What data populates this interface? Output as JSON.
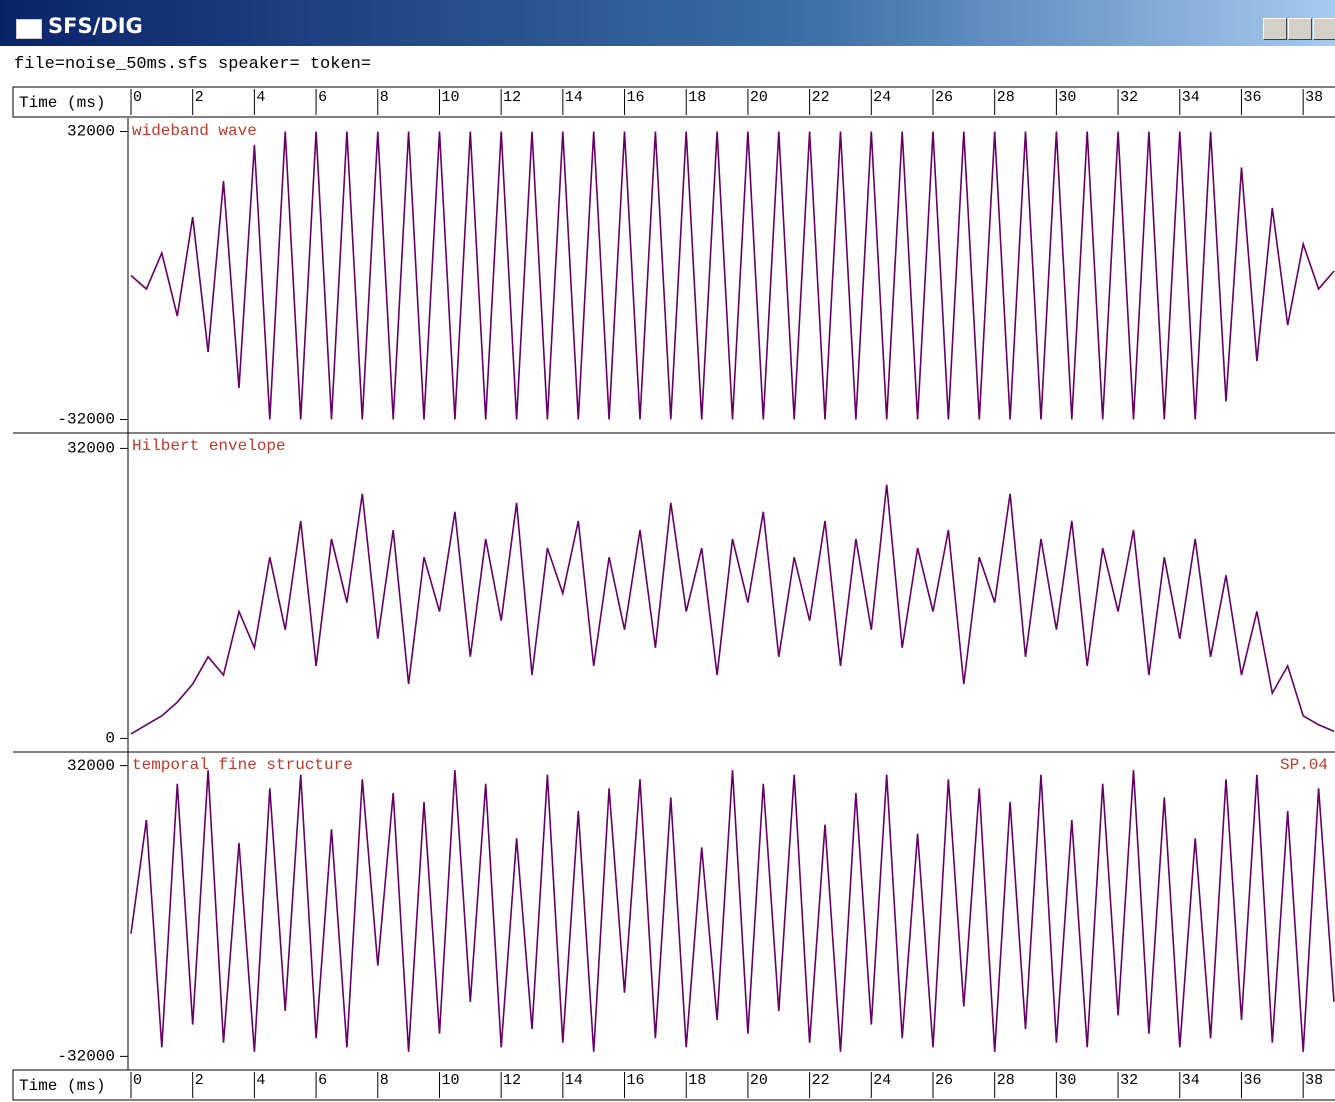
{
  "window_title": "SFS/DIG",
  "file_info": "file=noise_50ms.sfs speaker= token=",
  "time_axis": {
    "label": "Time (ms)",
    "xlim": [
      0,
      39
    ],
    "xticks": [
      0,
      2,
      4,
      6,
      8,
      10,
      12,
      14,
      16,
      18,
      20,
      22,
      24,
      26,
      28,
      30,
      32,
      34,
      36,
      38
    ]
  },
  "chart_data": [
    {
      "type": "line",
      "title": "wideband wave",
      "color": "#660066",
      "ylim": [
        -35000,
        35000
      ],
      "yticks": [
        -32000,
        32000
      ],
      "x": [
        0,
        0.5,
        1,
        1.5,
        2,
        2.5,
        3,
        3.5,
        4,
        4.5,
        5,
        5.5,
        6,
        6.5,
        7,
        7.5,
        8,
        8.5,
        9,
        9.5,
        10,
        10.5,
        11,
        11.5,
        12,
        12.5,
        13,
        13.5,
        14,
        14.5,
        15,
        15.5,
        16,
        16.5,
        17,
        17.5,
        18,
        18.5,
        19,
        19.5,
        20,
        20.5,
        21,
        21.5,
        22,
        22.5,
        23,
        23.5,
        24,
        24.5,
        25,
        25.5,
        26,
        26.5,
        27,
        27.5,
        28,
        28.5,
        29,
        29.5,
        30,
        30.5,
        31,
        31.5,
        32,
        32.5,
        33,
        33.5,
        34,
        34.5,
        35,
        35.5,
        36,
        36.5,
        37,
        37.5,
        38,
        38.5,
        39
      ],
      "values": [
        0,
        -3000,
        5000,
        -9000,
        13000,
        -17000,
        21000,
        -25000,
        29000,
        -32000,
        32000,
        -32000,
        32000,
        -32000,
        32000,
        -32000,
        32000,
        -32000,
        32000,
        -32000,
        32000,
        -32000,
        32000,
        -32000,
        32000,
        -32000,
        32000,
        -32000,
        32000,
        -32000,
        32000,
        -32000,
        32000,
        -32000,
        32000,
        -32000,
        32000,
        -32000,
        32000,
        -32000,
        32000,
        -32000,
        32000,
        -32000,
        32000,
        -32000,
        32000,
        -32000,
        32000,
        -32000,
        32000,
        -32000,
        32000,
        -32000,
        32000,
        -32000,
        32000,
        -32000,
        32000,
        -32000,
        32000,
        -32000,
        32000,
        -32000,
        32000,
        -32000,
        32000,
        -32000,
        32000,
        -32000,
        32000,
        -28000,
        24000,
        -19000,
        15000,
        -11000,
        7000,
        -3000,
        1000
      ]
    },
    {
      "type": "line",
      "title": "Hilbert envelope",
      "color": "#660066",
      "ylim": [
        -1500,
        33700
      ],
      "yticks": [
        0,
        32000
      ],
      "x": [
        0,
        0.5,
        1,
        1.5,
        2,
        2.5,
        3,
        3.5,
        4,
        4.5,
        5,
        5.5,
        6,
        6.5,
        7,
        7.5,
        8,
        8.5,
        9,
        9.5,
        10,
        10.5,
        11,
        11.5,
        12,
        12.5,
        13,
        13.5,
        14,
        14.5,
        15,
        15.5,
        16,
        16.5,
        17,
        17.5,
        18,
        18.5,
        19,
        19.5,
        20,
        20.5,
        21,
        21.5,
        22,
        22.5,
        23,
        23.5,
        24,
        24.5,
        25,
        25.5,
        26,
        26.5,
        27,
        27.5,
        28,
        28.5,
        29,
        29.5,
        30,
        30.5,
        31,
        31.5,
        32,
        32.5,
        33,
        33.5,
        34,
        34.5,
        35,
        35.5,
        36,
        36.5,
        37,
        37.5,
        38,
        38.5,
        39
      ],
      "values": [
        500,
        1500,
        2500,
        4000,
        6000,
        9000,
        7000,
        14000,
        10000,
        20000,
        12000,
        24000,
        8000,
        22000,
        15000,
        27000,
        11000,
        23000,
        6000,
        20000,
        14000,
        25000,
        9000,
        22000,
        13000,
        26000,
        7000,
        21000,
        16000,
        24000,
        8000,
        20000,
        12000,
        23000,
        10000,
        26000,
        14000,
        21000,
        7000,
        22000,
        15000,
        25000,
        9000,
        20000,
        13000,
        24000,
        8000,
        22000,
        12000,
        28000,
        10000,
        21000,
        14000,
        23000,
        6000,
        20000,
        15000,
        27000,
        9000,
        22000,
        12000,
        24000,
        8000,
        21000,
        14000,
        23000,
        7000,
        20000,
        11000,
        22000,
        9000,
        18000,
        7000,
        14000,
        5000,
        8000,
        2500,
        1500,
        800
      ]
    },
    {
      "type": "line",
      "title": "temporal fine structure",
      "annotation": "SP.04",
      "color": "#660066",
      "ylim": [
        -35000,
        35000
      ],
      "yticks": [
        -32000,
        32000
      ],
      "x": [
        0,
        0.5,
        1,
        1.5,
        2,
        2.5,
        3,
        3.5,
        4,
        4.5,
        5,
        5.5,
        6,
        6.5,
        7,
        7.5,
        8,
        8.5,
        9,
        9.5,
        10,
        10.5,
        11,
        11.5,
        12,
        12.5,
        13,
        13.5,
        14,
        14.5,
        15,
        15.5,
        16,
        16.5,
        17,
        17.5,
        18,
        18.5,
        19,
        19.5,
        20,
        20.5,
        21,
        21.5,
        22,
        22.5,
        23,
        23.5,
        24,
        24.5,
        25,
        25.5,
        26,
        26.5,
        27,
        27.5,
        28,
        28.5,
        29,
        29.5,
        30,
        30.5,
        31,
        31.5,
        32,
        32.5,
        33,
        33.5,
        34,
        34.5,
        35,
        35.5,
        36,
        36.5,
        37,
        37.5,
        38,
        38.5,
        39
      ],
      "values": [
        -5000,
        20000,
        -30000,
        28000,
        -25000,
        31000,
        -29000,
        15000,
        -31000,
        27000,
        -22000,
        30000,
        -28000,
        18000,
        -30000,
        29000,
        -12000,
        26000,
        -31000,
        24000,
        -27000,
        31000,
        -20000,
        28000,
        -30000,
        16000,
        -26000,
        30000,
        -29000,
        22000,
        -31000,
        27000,
        -18000,
        29000,
        -28000,
        25000,
        -30000,
        14000,
        -24000,
        31000,
        -27000,
        28000,
        -22000,
        30000,
        -29000,
        19000,
        -31000,
        26000,
        -25000,
        30000,
        -28000,
        17000,
        -30000,
        29000,
        -21000,
        27000,
        -31000,
        24000,
        -26000,
        30000,
        -29000,
        20000,
        -30000,
        28000,
        -23000,
        31000,
        -27000,
        25000,
        -30000,
        16000,
        -28000,
        29000,
        -24000,
        30000,
        -29000,
        22000,
        -31000,
        27000,
        -20000
      ]
    }
  ]
}
